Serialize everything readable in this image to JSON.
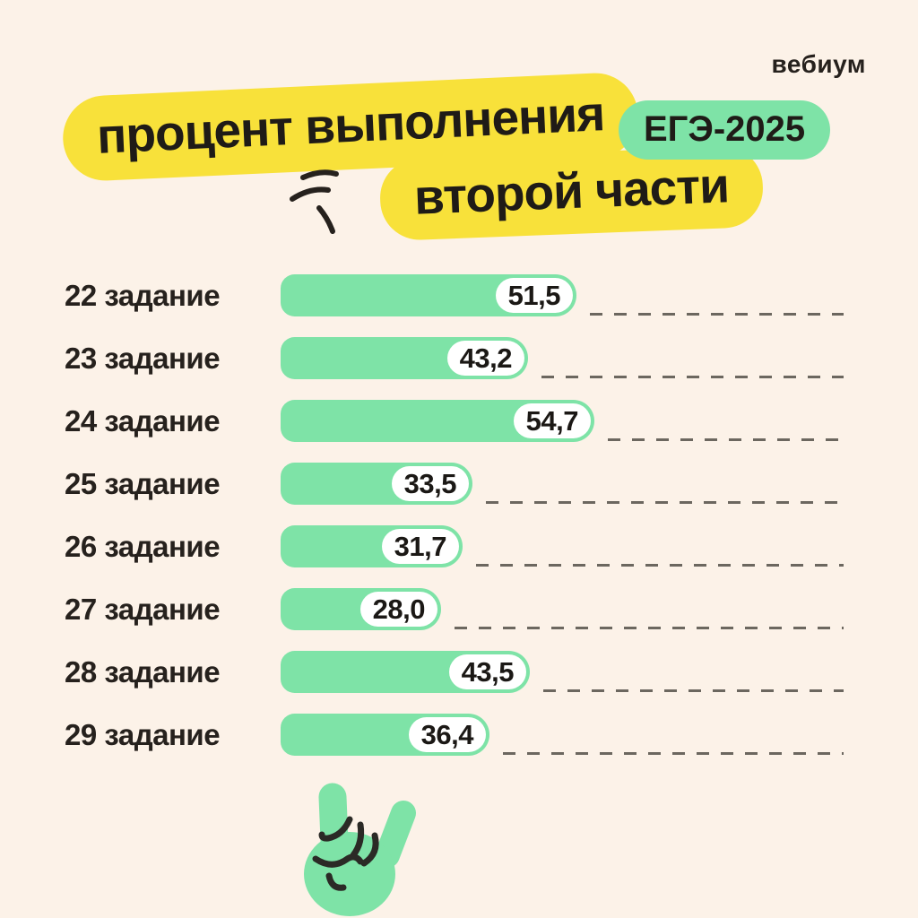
{
  "page": {
    "logo": "вебиум"
  },
  "theme": {
    "background": "#fcf2e8",
    "highlight_yellow": "#f8e13a",
    "green": "#7ee3a7",
    "text_dark": "#26211d",
    "dash_gray": "#6c675f",
    "pill_white": "#ffffff"
  },
  "header": {
    "title_line1": "процент выполнения",
    "title_line2": "второй части",
    "badge": "ЕГЭ-2025"
  },
  "chart_data": {
    "type": "bar",
    "orientation": "horizontal",
    "title": "процент выполнения второй части ЕГЭ-2025",
    "xlabel": "",
    "ylabel": "",
    "xlim": [
      0,
      100
    ],
    "grid": "dashed trailing lines to right margin",
    "legend": "none",
    "categories": [
      "22 задание",
      "23 задание",
      "24 задание",
      "25 задание",
      "26 задание",
      "27 задание",
      "28 задание",
      "29 задание"
    ],
    "values": [
      51.5,
      43.2,
      54.7,
      33.5,
      31.7,
      28.0,
      43.5,
      36.4
    ],
    "value_labels": [
      "51,5",
      "43,2",
      "54,7",
      "33,5",
      "31,7",
      "28,0",
      "43,5",
      "36,4"
    ],
    "bar_color": "#7ee3a7",
    "value_pill_color": "#ffffff"
  }
}
